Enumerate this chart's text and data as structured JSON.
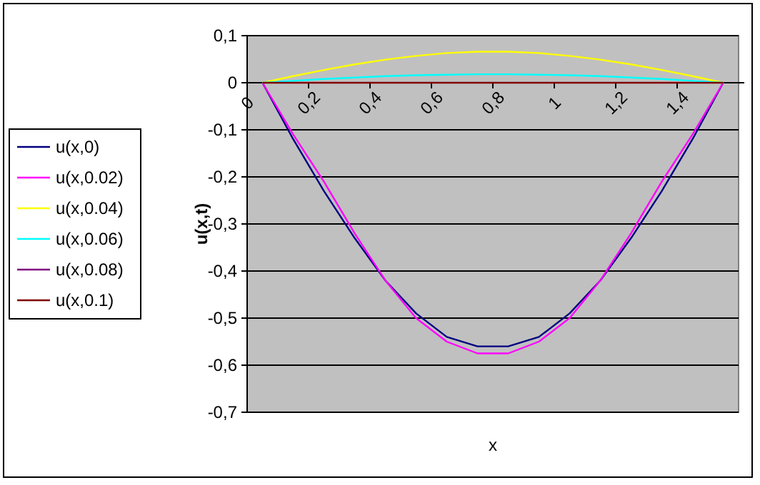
{
  "chart_data": {
    "type": "line",
    "xlabel": "x",
    "ylabel": "u(x,t)",
    "x": [
      0.05,
      0.15,
      0.25,
      0.35,
      0.45,
      0.55,
      0.65,
      0.75,
      0.85,
      0.95,
      1.05,
      1.15,
      1.25,
      1.35,
      1.45,
      1.55
    ],
    "series": [
      {
        "name": "u(x,0)",
        "color": "#000080",
        "values": [
          0,
          -0.12,
          -0.23,
          -0.33,
          -0.42,
          -0.49,
          -0.54,
          -0.56,
          -0.56,
          -0.54,
          -0.49,
          -0.42,
          -0.33,
          -0.23,
          -0.12,
          0
        ]
      },
      {
        "name": "u(x,0.02)",
        "color": "#ff00ff",
        "values": [
          0,
          -0.11,
          -0.21,
          -0.32,
          -0.42,
          -0.5,
          -0.55,
          -0.575,
          -0.575,
          -0.55,
          -0.5,
          -0.42,
          -0.32,
          -0.21,
          -0.11,
          0
        ]
      },
      {
        "name": "u(x,0.04)",
        "color": "#ffff00",
        "values": [
          0,
          0.014,
          0.027,
          0.039,
          0.049,
          0.057,
          0.063,
          0.066,
          0.066,
          0.063,
          0.057,
          0.049,
          0.039,
          0.027,
          0.014,
          0
        ]
      },
      {
        "name": "u(x,0.06)",
        "color": "#00ffff",
        "values": [
          0,
          0.004,
          0.008,
          0.011,
          0.014,
          0.016,
          0.017,
          0.018,
          0.018,
          0.017,
          0.016,
          0.014,
          0.011,
          0.008,
          0.004,
          0
        ]
      },
      {
        "name": "u(x,0.08)",
        "color": "#800080",
        "values": [
          null,
          null,
          null,
          null,
          null,
          null,
          null,
          null,
          null,
          null,
          null,
          null,
          null,
          null,
          null,
          null
        ]
      },
      {
        "name": "u(x,0.1)",
        "color": "#800000",
        "values": [
          0,
          0,
          0,
          0,
          0,
          0,
          0,
          0,
          0,
          0,
          0,
          0,
          0,
          0,
          0,
          0
        ]
      }
    ],
    "xlim": [
      0,
      1.6
    ],
    "xticks": [
      0,
      {
        "value": 0.2,
        "label": "0,2"
      },
      {
        "value": 0.4,
        "label": "0,4"
      },
      {
        "value": 0.6,
        "label": "0,6"
      },
      {
        "value": 0.8,
        "label": "0,8"
      },
      1,
      {
        "value": 1.2,
        "label": "1,2"
      },
      {
        "value": 1.4,
        "label": "1,4"
      }
    ],
    "ylim": [
      -0.7,
      0.1
    ],
    "yticks": [
      {
        "value": 0.1,
        "label": "0,1"
      },
      0,
      {
        "value": -0.1,
        "label": "-0,1"
      },
      {
        "value": -0.2,
        "label": "-0,2"
      },
      {
        "value": -0.3,
        "label": "-0,3"
      },
      {
        "value": -0.4,
        "label": "-0,4"
      },
      {
        "value": -0.5,
        "label": "-0,5"
      },
      {
        "value": -0.6,
        "label": "-0,6"
      },
      {
        "value": -0.7,
        "label": "-0,7"
      }
    ],
    "grid": "y",
    "legend": "left",
    "marker": "none",
    "line_style": "solid"
  }
}
